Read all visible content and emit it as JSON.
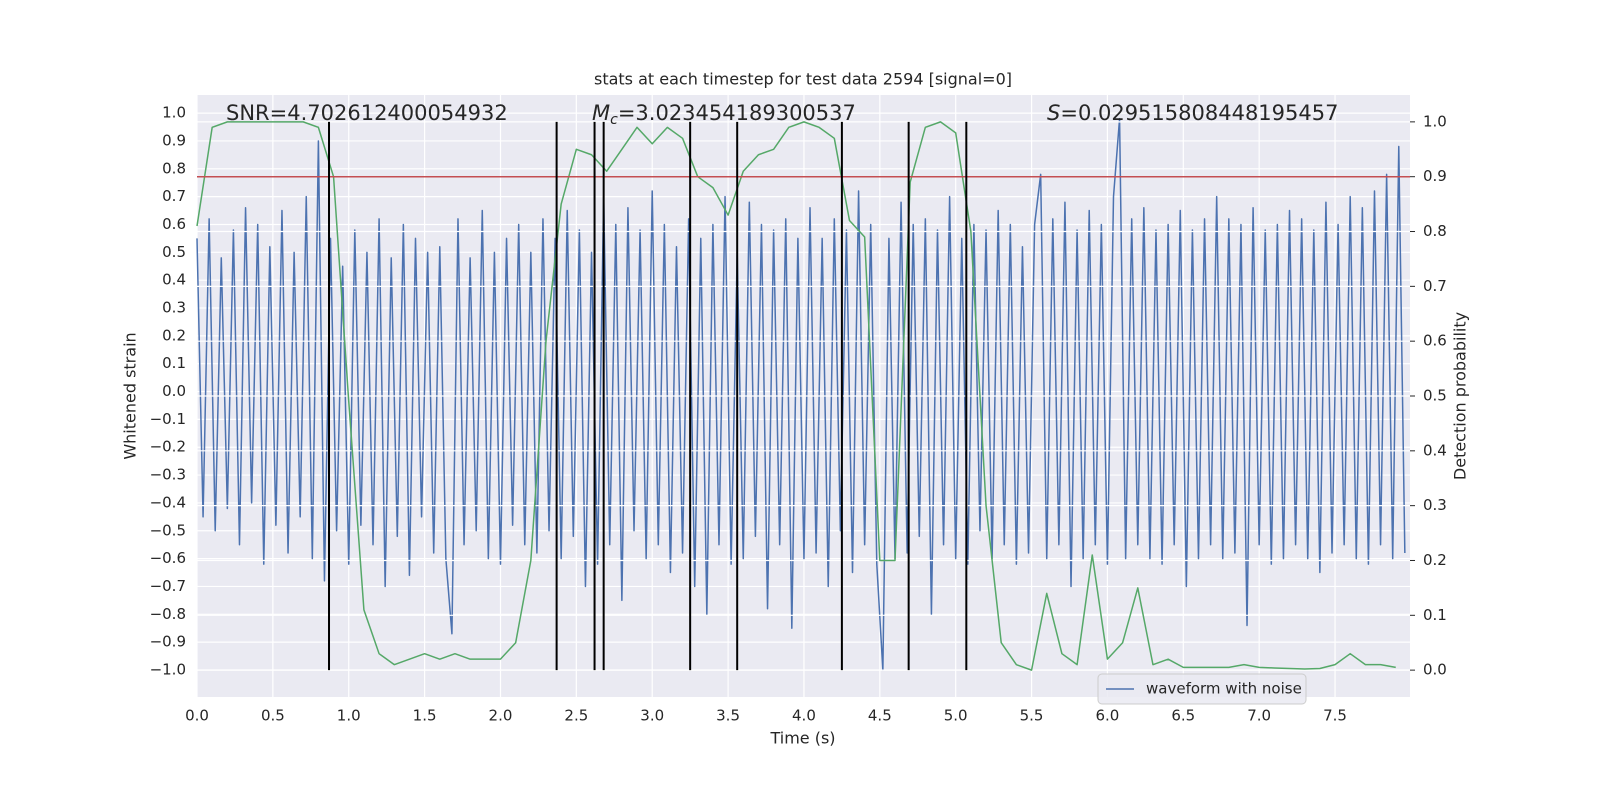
{
  "chart_data": {
    "type": "line",
    "title": "stats at each timestep for test data 2594 [signal=0]",
    "xlabel": "Time (s)",
    "ylabel": "Whitened strain",
    "y2label": "Detection probability",
    "annotations": [
      {
        "text": "SNR=4.702612400054932"
      },
      {
        "symbol": "M",
        "subscript": "c",
        "text": "=3.023454189300537"
      },
      {
        "symbol": "S",
        "text": "=0.029515808448195457"
      }
    ],
    "xlim": [
      0,
      7.994
    ],
    "xticks": [
      {
        "value": 0,
        "label": "0.0"
      },
      0.5,
      {
        "value": 1,
        "label": "1.0"
      },
      1.5,
      {
        "value": 2,
        "label": "2.0"
      },
      2.5,
      {
        "value": 3,
        "label": "3.0"
      },
      3.5,
      {
        "value": 4,
        "label": "4.0"
      },
      4.5,
      {
        "value": 5,
        "label": "5.0"
      },
      5.5,
      {
        "value": 6,
        "label": "6.0"
      },
      6.5,
      {
        "value": 7,
        "label": "7.0"
      },
      7.5
    ],
    "ylim": [
      -1.097,
      1.065
    ],
    "yticks": [
      {
        "value": -1,
        "label": "−1.0"
      },
      {
        "value": -0.9,
        "label": "−0.9"
      },
      {
        "value": -0.8,
        "label": "−0.8"
      },
      {
        "value": -0.7,
        "label": "−0.7"
      },
      {
        "value": -0.6,
        "label": "−0.6"
      },
      {
        "value": -0.5,
        "label": "−0.5"
      },
      {
        "value": -0.4,
        "label": "−0.4"
      },
      {
        "value": -0.3,
        "label": "−0.3"
      },
      {
        "value": -0.2,
        "label": "−0.2"
      },
      {
        "value": -0.1,
        "label": "−0.1"
      },
      {
        "value": 0,
        "label": "0.0"
      },
      0.1,
      0.2,
      0.3,
      0.4,
      0.5,
      0.6,
      0.7,
      0.8,
      0.9,
      {
        "value": 1,
        "label": "1.0"
      }
    ],
    "y2lim": [
      -0.049,
      1.049
    ],
    "y2ticks": [
      {
        "value": 0,
        "label": "0.0"
      },
      0.1,
      0.2,
      0.3,
      0.4,
      0.5,
      0.6,
      0.7,
      0.8,
      0.9,
      {
        "value": 1,
        "label": "1.0"
      }
    ],
    "grid": true,
    "legend": "lower right",
    "series": [
      {
        "name": "waveform with noise",
        "color": "#4c72b0",
        "x": [
          0,
          0.04,
          0.08,
          0.12,
          0.16,
          0.2,
          0.24,
          0.28,
          0.32,
          0.36,
          0.4,
          0.44,
          0.48,
          0.52,
          0.56,
          0.6,
          0.64,
          0.68,
          0.72,
          0.76,
          0.8,
          0.84,
          0.88,
          0.92,
          0.96,
          1.0,
          1.04,
          1.08,
          1.12,
          1.16,
          1.2,
          1.24,
          1.28,
          1.32,
          1.36,
          1.4,
          1.44,
          1.48,
          1.52,
          1.56,
          1.6,
          1.64,
          1.68,
          1.72,
          1.76,
          1.8,
          1.84,
          1.88,
          1.92,
          1.96,
          2.0,
          2.04,
          2.08,
          2.12,
          2.16,
          2.2,
          2.24,
          2.28,
          2.32,
          2.36,
          2.4,
          2.44,
          2.48,
          2.52,
          2.56,
          2.6,
          2.64,
          2.68,
          2.72,
          2.76,
          2.8,
          2.84,
          2.88,
          2.92,
          2.96,
          3.0,
          3.04,
          3.08,
          3.12,
          3.16,
          3.2,
          3.24,
          3.28,
          3.32,
          3.36,
          3.4,
          3.44,
          3.48,
          3.52,
          3.56,
          3.6,
          3.64,
          3.68,
          3.72,
          3.76,
          3.8,
          3.84,
          3.88,
          3.92,
          3.96,
          4.0,
          4.04,
          4.08,
          4.12,
          4.16,
          4.2,
          4.24,
          4.28,
          4.32,
          4.36,
          4.4,
          4.44,
          4.48,
          4.52,
          4.56,
          4.6,
          4.64,
          4.68,
          4.72,
          4.76,
          4.8,
          4.84,
          4.88,
          4.92,
          4.96,
          5.0,
          5.04,
          5.08,
          5.12,
          5.16,
          5.2,
          5.24,
          5.28,
          5.32,
          5.36,
          5.4,
          5.44,
          5.48,
          5.52,
          5.56,
          5.6,
          5.64,
          5.68,
          5.72,
          5.76,
          5.8,
          5.84,
          5.88,
          5.92,
          5.96,
          6.0,
          6.04,
          6.08,
          6.12,
          6.16,
          6.2,
          6.24,
          6.28,
          6.32,
          6.36,
          6.4,
          6.44,
          6.48,
          6.52,
          6.56,
          6.6,
          6.64,
          6.68,
          6.72,
          6.76,
          6.8,
          6.84,
          6.88,
          6.92,
          6.96,
          7.0,
          7.04,
          7.08,
          7.12,
          7.16,
          7.2,
          7.24,
          7.28,
          7.32,
          7.36,
          7.4,
          7.44,
          7.48,
          7.52,
          7.56,
          7.6,
          7.64,
          7.68,
          7.72,
          7.76,
          7.8,
          7.84,
          7.88,
          7.92,
          7.96
        ],
        "values": [
          0.55,
          -0.45,
          0.62,
          -0.5,
          0.48,
          -0.42,
          0.58,
          -0.55,
          0.66,
          -0.4,
          0.6,
          -0.62,
          0.52,
          -0.48,
          0.65,
          -0.58,
          0.5,
          -0.45,
          0.7,
          -0.6,
          0.9,
          -0.68,
          0.55,
          -0.5,
          0.45,
          -0.62,
          0.58,
          -0.48,
          0.5,
          -0.55,
          0.62,
          -0.7,
          0.48,
          -0.52,
          0.6,
          -0.66,
          0.55,
          -0.45,
          0.5,
          -0.58,
          0.52,
          -0.6,
          -0.87,
          0.62,
          -0.55,
          0.48,
          -0.5,
          0.65,
          -0.6,
          0.5,
          -0.62,
          0.55,
          -0.48,
          0.6,
          -0.55,
          0.5,
          -0.58,
          0.62,
          -0.5,
          0.55,
          -0.6,
          0.65,
          -0.52,
          0.58,
          -0.7,
          0.5,
          -0.62,
          0.7,
          -0.55,
          0.6,
          -0.75,
          0.66,
          -0.5,
          0.58,
          -0.6,
          0.72,
          -0.55,
          0.6,
          -0.65,
          0.52,
          -0.58,
          0.62,
          -0.7,
          0.55,
          -0.8,
          0.6,
          -0.55,
          0.7,
          -0.62,
          0.5,
          -0.6,
          0.68,
          -0.52,
          0.6,
          -0.78,
          0.58,
          -0.55,
          0.62,
          -0.85,
          0.55,
          -0.6,
          0.66,
          -0.58,
          0.55,
          -0.7,
          0.62,
          -0.5,
          0.58,
          -0.65,
          0.72,
          -0.55,
          0.6,
          -0.62,
          -1.0,
          0.55,
          -0.6,
          0.68,
          -0.58,
          0.6,
          -0.52,
          0.62,
          -0.8,
          0.58,
          -0.55,
          0.7,
          -0.6,
          0.55,
          -0.62,
          0.6,
          -0.5,
          0.58,
          -0.6,
          0.65,
          -0.55,
          0.6,
          -0.62,
          0.52,
          -0.58,
          0.6,
          0.78,
          -0.6,
          0.62,
          -0.55,
          0.68,
          -0.7,
          0.58,
          -0.6,
          0.65,
          -0.55,
          0.6,
          -0.62,
          0.7,
          0.98,
          -0.6,
          0.62,
          -0.55,
          0.66,
          -0.6,
          0.58,
          -0.62,
          0.6,
          -0.55,
          0.65,
          -0.7,
          0.58,
          -0.6,
          0.62,
          -0.55,
          0.7,
          -0.6,
          0.62,
          -0.58,
          0.6,
          -0.84,
          0.66,
          -0.55,
          0.58,
          -0.62,
          0.6,
          -0.6,
          0.65,
          -0.55,
          0.62,
          -0.6,
          0.58,
          -0.65,
          0.68,
          -0.58,
          0.6,
          -0.55,
          0.7,
          -0.6,
          0.66,
          -0.62,
          0.72,
          -0.55,
          0.78,
          -0.6,
          0.88,
          -0.58
        ]
      },
      {
        "color": "#55a868",
        "axis": "y2",
        "x": [
          0,
          0.1,
          0.2,
          0.3,
          0.4,
          0.5,
          0.6,
          0.7,
          0.8,
          0.9,
          1.0,
          1.1,
          1.2,
          1.3,
          1.4,
          1.5,
          1.6,
          1.7,
          1.8,
          1.9,
          2.0,
          2.1,
          2.2,
          2.3,
          2.4,
          2.5,
          2.6,
          2.7,
          2.8,
          2.9,
          3.0,
          3.1,
          3.2,
          3.3,
          3.4,
          3.5,
          3.6,
          3.7,
          3.8,
          3.9,
          4.0,
          4.1,
          4.2,
          4.3,
          4.4,
          4.5,
          4.6,
          4.7,
          4.8,
          4.9,
          5.0,
          5.1,
          5.2,
          5.3,
          5.4,
          5.5,
          5.6,
          5.7,
          5.8,
          5.9,
          6.0,
          6.1,
          6.2,
          6.3,
          6.4,
          6.5,
          6.6,
          6.7,
          6.8,
          6.9,
          7.0,
          7.1,
          7.2,
          7.3,
          7.4,
          7.5,
          7.6,
          7.7,
          7.8,
          7.9
        ],
        "values": [
          0.81,
          0.99,
          1.0,
          1.0,
          1.0,
          1.0,
          1.0,
          1.0,
          0.99,
          0.9,
          0.49,
          0.11,
          0.03,
          0.01,
          0.02,
          0.03,
          0.02,
          0.03,
          0.02,
          0.02,
          0.02,
          0.05,
          0.2,
          0.6,
          0.85,
          0.95,
          0.94,
          0.91,
          0.95,
          0.99,
          0.96,
          0.99,
          0.97,
          0.9,
          0.88,
          0.83,
          0.91,
          0.94,
          0.95,
          0.99,
          1.0,
          0.99,
          0.97,
          0.82,
          0.79,
          0.2,
          0.2,
          0.89,
          0.99,
          1.0,
          0.98,
          0.8,
          0.3,
          0.05,
          0.01,
          0.0,
          0.14,
          0.03,
          0.01,
          0.21,
          0.02,
          0.05,
          0.15,
          0.01,
          0.02,
          0.005,
          0.005,
          0.005,
          0.005,
          0.01,
          0.005,
          0.004,
          0.003,
          0.002,
          0.003,
          0.01,
          0.03,
          0.01,
          0.01,
          0.005
        ]
      }
    ],
    "hlines": [
      {
        "value": 0.9,
        "axis": "y2",
        "color": "#c44e52"
      }
    ],
    "vlines": {
      "x": [
        0.87,
        2.37,
        2.62,
        2.68,
        3.25,
        3.56,
        4.25,
        4.69,
        5.07
      ],
      "ymin": 0,
      "ymax": 1,
      "axis": "y2",
      "color": "#000000"
    }
  }
}
